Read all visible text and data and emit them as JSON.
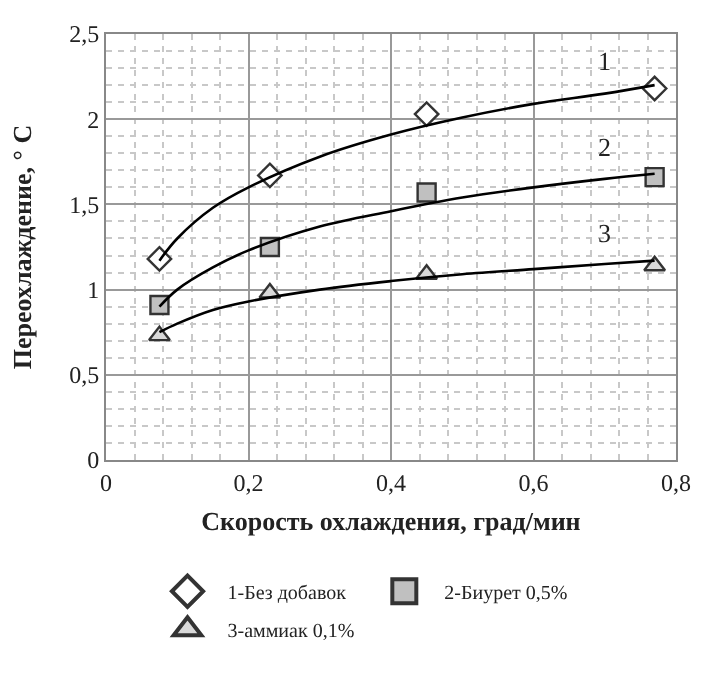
{
  "chart_data": {
    "type": "scatter",
    "xlabel": "Скорость охлаждения, град/мин",
    "ylabel": "Переохлаждение, ° С",
    "xlim": [
      0,
      0.8
    ],
    "ylim": [
      0,
      2.5
    ],
    "xticks": [
      0,
      {
        "value": 0.2,
        "label": "0,2"
      },
      {
        "value": 0.4,
        "label": "0,4"
      },
      {
        "value": 0.6,
        "label": "0,6"
      },
      {
        "value": 0.8,
        "label": "0,8"
      }
    ],
    "yticks": [
      0,
      {
        "value": 0.5,
        "label": "0,5"
      },
      1,
      {
        "value": 1.5,
        "label": "1,5"
      },
      2,
      {
        "value": 2.5,
        "label": "2,5"
      }
    ],
    "grid": true,
    "legend": "bottom",
    "series": [
      {
        "name": "1-Без добавок",
        "marker": "diamond",
        "color": "#ffffff",
        "x": [
          0.075,
          0.23,
          0.45,
          0.77
        ],
        "values": [
          1.18,
          1.67,
          2.03,
          2.18
        ]
      },
      {
        "name": "2-Биурет 0,5%",
        "marker": "square",
        "color": "#c0c0c0",
        "x": [
          0.075,
          0.23,
          0.45,
          0.77
        ],
        "values": [
          0.91,
          1.25,
          1.57,
          1.66
        ]
      },
      {
        "name": "3-аммиак 0,1%",
        "marker": "triangle",
        "color": "#d9d9d9",
        "x": [
          0.075,
          0.23,
          0.45,
          0.77
        ],
        "values": [
          0.73,
          0.98,
          1.09,
          1.14
        ]
      },
      {
        "type": "line",
        "color": "#000000",
        "x": [
          0.075,
          0.1,
          0.15,
          0.2,
          0.3,
          0.4,
          0.5,
          0.6,
          0.7,
          0.77
        ],
        "values": [
          1.17,
          1.3,
          1.48,
          1.6,
          1.78,
          1.91,
          2.01,
          2.09,
          2.15,
          2.2
        ]
      },
      {
        "type": "line",
        "color": "#000000",
        "x": [
          0.075,
          0.1,
          0.15,
          0.2,
          0.3,
          0.4,
          0.5,
          0.6,
          0.7,
          0.77
        ],
        "values": [
          0.9,
          1.0,
          1.13,
          1.23,
          1.37,
          1.46,
          1.54,
          1.6,
          1.65,
          1.68
        ]
      },
      {
        "type": "line",
        "color": "#000000",
        "x": [
          0.075,
          0.1,
          0.15,
          0.2,
          0.3,
          0.4,
          0.5,
          0.6,
          0.7,
          0.77
        ],
        "values": [
          0.75,
          0.8,
          0.88,
          0.93,
          1.0,
          1.05,
          1.09,
          1.12,
          1.15,
          1.17
        ]
      }
    ],
    "annotations": [
      "1",
      "2",
      "3"
    ]
  }
}
